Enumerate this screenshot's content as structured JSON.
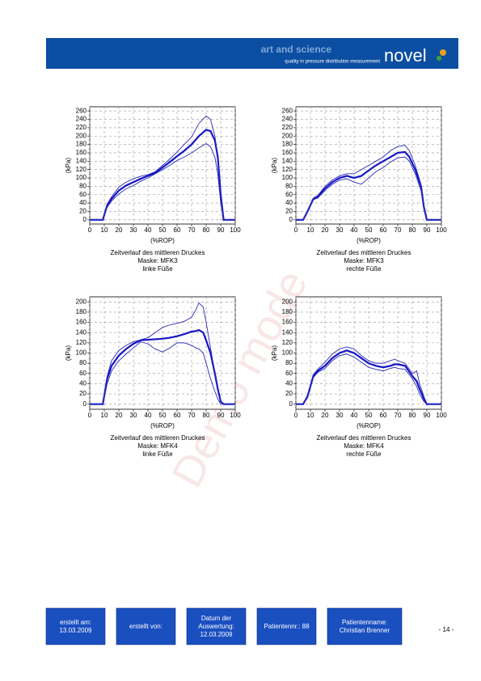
{
  "header": {
    "slogan": "art and science",
    "tagline": "quality in pressure distribution measurement",
    "logo": "novel"
  },
  "watermark": "Demo mode",
  "chart_data": [
    {
      "type": "line",
      "xlabel": "(%ROP)",
      "ylabel": "(kPa)",
      "caption": [
        "Zeitverlauf des mittleren Druckes",
        "Maske: MFK3",
        "linke Füße"
      ],
      "x": [
        0,
        5,
        9,
        12,
        15,
        20,
        25,
        30,
        35,
        40,
        45,
        50,
        55,
        60,
        65,
        70,
        75,
        80,
        83,
        86,
        88,
        90,
        92,
        95,
        100
      ],
      "series": [
        {
          "color": "#1414c8",
          "values": [
            0,
            0,
            0,
            35,
            50,
            70,
            82,
            90,
            98,
            105,
            112,
            125,
            138,
            152,
            165,
            180,
            200,
            215,
            212,
            190,
            150,
            60,
            0,
            0,
            0
          ]
        },
        {
          "color": "#2a2ab4",
          "values": [
            0,
            0,
            0,
            38,
            55,
            78,
            90,
            98,
            104,
            108,
            115,
            130,
            145,
            162,
            180,
            198,
            230,
            248,
            240,
            200,
            150,
            60,
            0,
            0,
            0
          ]
        },
        {
          "color": "#2a2ab4",
          "values": [
            0,
            0,
            0,
            30,
            45,
            62,
            74,
            82,
            92,
            100,
            110,
            120,
            130,
            142,
            150,
            160,
            172,
            182,
            175,
            150,
            110,
            40,
            0,
            0,
            0
          ]
        }
      ],
      "xlim": [
        0,
        100
      ],
      "ylim": [
        -10,
        270
      ],
      "xticks": [
        0,
        10,
        20,
        30,
        40,
        50,
        60,
        70,
        80,
        90,
        100
      ],
      "yticks": [
        0,
        20,
        40,
        60,
        80,
        100,
        120,
        140,
        160,
        180,
        200,
        220,
        240,
        260
      ],
      "grid": true
    },
    {
      "type": "line",
      "xlabel": "(%ROP)",
      "ylabel": "(kPa)",
      "caption": [
        "Zeitverlauf des mittleren Druckes",
        "Maske: MFK3",
        "rechte Füße"
      ],
      "x": [
        0,
        5,
        8,
        12,
        15,
        20,
        25,
        30,
        35,
        40,
        45,
        50,
        55,
        60,
        65,
        70,
        75,
        78,
        82,
        86,
        88,
        90,
        95,
        100
      ],
      "series": [
        {
          "color": "#1414c8",
          "values": [
            0,
            0,
            20,
            50,
            55,
            75,
            90,
            100,
            105,
            100,
            105,
            118,
            130,
            140,
            150,
            160,
            162,
            150,
            120,
            80,
            30,
            0,
            0,
            0
          ]
        },
        {
          "color": "#2a2ab4",
          "values": [
            0,
            0,
            22,
            52,
            58,
            80,
            95,
            105,
            110,
            110,
            120,
            130,
            140,
            150,
            165,
            175,
            178,
            165,
            130,
            85,
            35,
            0,
            0,
            0
          ]
        },
        {
          "color": "#2a2ab4",
          "values": [
            0,
            0,
            18,
            48,
            52,
            70,
            85,
            95,
            98,
            90,
            85,
            100,
            115,
            125,
            138,
            148,
            150,
            140,
            110,
            70,
            25,
            0,
            0,
            0
          ]
        }
      ],
      "xlim": [
        0,
        100
      ],
      "ylim": [
        -10,
        270
      ],
      "xticks": [
        0,
        10,
        20,
        30,
        40,
        50,
        60,
        70,
        80,
        90,
        100
      ],
      "yticks": [
        0,
        20,
        40,
        60,
        80,
        100,
        120,
        140,
        160,
        180,
        200,
        220,
        240,
        260
      ],
      "grid": true
    },
    {
      "type": "line",
      "xlabel": "(%ROP)",
      "ylabel": "(kPa)",
      "caption": [
        "Zeitverlauf des mittleren Druckes",
        "Maske: MFK4",
        "linke Füße"
      ],
      "x": [
        0,
        5,
        9,
        12,
        15,
        20,
        25,
        30,
        35,
        40,
        45,
        50,
        55,
        60,
        65,
        70,
        73,
        75,
        78,
        80,
        83,
        86,
        88,
        90,
        92,
        95,
        100
      ],
      "series": [
        {
          "color": "#1414c8",
          "values": [
            0,
            0,
            0,
            50,
            75,
            95,
            108,
            118,
            125,
            126,
            127,
            128,
            130,
            133,
            137,
            142,
            143,
            145,
            140,
            125,
            100,
            60,
            30,
            5,
            0,
            0,
            0
          ]
        },
        {
          "color": "#2a2ab4",
          "values": [
            0,
            0,
            0,
            55,
            85,
            105,
            115,
            122,
            126,
            130,
            140,
            150,
            155,
            158,
            162,
            170,
            185,
            198,
            190,
            160,
            110,
            60,
            30,
            5,
            0,
            0,
            0
          ]
        },
        {
          "color": "#2a2ab4",
          "values": [
            0,
            0,
            0,
            40,
            65,
            85,
            98,
            110,
            122,
            118,
            108,
            102,
            110,
            120,
            120,
            115,
            110,
            108,
            100,
            80,
            50,
            25,
            10,
            0,
            0,
            0,
            0
          ]
        }
      ],
      "xlim": [
        0,
        100
      ],
      "ylim": [
        -10,
        210
      ],
      "xticks": [
        0,
        10,
        20,
        30,
        40,
        50,
        60,
        70,
        80,
        90,
        100
      ],
      "yticks": [
        0,
        20,
        40,
        60,
        80,
        100,
        120,
        140,
        160,
        180,
        200
      ],
      "grid": true
    },
    {
      "type": "line",
      "xlabel": "(%ROP)",
      "ylabel": "(kPa)",
      "caption": [
        "Zeitverlauf des mittleren Druckes",
        "Maske: MFK4",
        "rechte Füße"
      ],
      "x": [
        0,
        5,
        8,
        12,
        15,
        20,
        25,
        30,
        35,
        40,
        45,
        50,
        55,
        60,
        65,
        68,
        70,
        75,
        80,
        83,
        85,
        88,
        90,
        95,
        100
      ],
      "series": [
        {
          "color": "#1414c8",
          "values": [
            0,
            0,
            15,
            55,
            65,
            75,
            90,
            100,
            105,
            100,
            90,
            80,
            75,
            72,
            75,
            78,
            78,
            75,
            55,
            45,
            30,
            10,
            0,
            0,
            0
          ]
        },
        {
          "color": "#2a2ab4",
          "values": [
            0,
            0,
            18,
            58,
            68,
            82,
            98,
            108,
            112,
            108,
            95,
            85,
            80,
            80,
            85,
            88,
            85,
            80,
            60,
            65,
            40,
            15,
            0,
            0,
            0
          ]
        },
        {
          "color": "#2a2ab4",
          "values": [
            0,
            0,
            12,
            52,
            62,
            70,
            85,
            95,
            98,
            92,
            82,
            72,
            68,
            65,
            70,
            72,
            70,
            68,
            50,
            35,
            20,
            5,
            0,
            0,
            0
          ]
        }
      ],
      "xlim": [
        0,
        100
      ],
      "ylim": [
        -10,
        210
      ],
      "xticks": [
        0,
        10,
        20,
        30,
        40,
        50,
        60,
        70,
        80,
        90,
        100
      ],
      "yticks": [
        0,
        20,
        40,
        60,
        80,
        100,
        120,
        140,
        160,
        180,
        200
      ],
      "grid": true
    }
  ],
  "footer": {
    "boxes": [
      [
        "erstellt am:",
        "13.03.2009"
      ],
      [
        "erstellt von:"
      ],
      [
        "Datum der",
        "Auswertung:",
        "12.03.2009"
      ],
      [
        "Patientennr.: 88"
      ],
      [
        "Patientenname:",
        "Christian Brenner"
      ]
    ],
    "page": "- 14 -"
  }
}
